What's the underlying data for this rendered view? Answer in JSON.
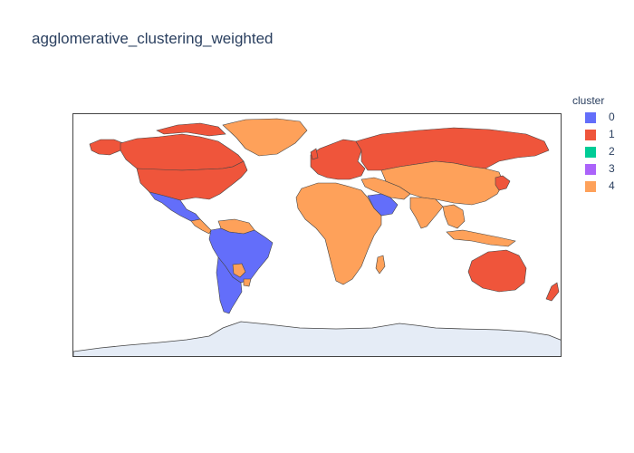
{
  "chart": {
    "title": "agglomerative_clustering_weighted"
  },
  "legend": {
    "title": "cluster",
    "items": [
      {
        "label": "0",
        "color": "#636efa"
      },
      {
        "label": "1",
        "color": "#ef553b"
      },
      {
        "label": "2",
        "color": "#00cc96"
      },
      {
        "label": "3",
        "color": "#ab63fa"
      },
      {
        "label": "4",
        "color": "#fea15a"
      }
    ]
  },
  "chart_data": {
    "type": "choropleth",
    "title": "agglomerative_clustering_weighted",
    "legend_title": "cluster",
    "legend_placement": "right",
    "categories": [
      "0",
      "1",
      "2",
      "3",
      "4"
    ],
    "category_colors": {
      "0": "#636efa",
      "1": "#ef553b",
      "2": "#00cc96",
      "3": "#ab63fa",
      "4": "#fea15a"
    },
    "regions": [
      {
        "name": "Canada",
        "cluster": "1"
      },
      {
        "name": "United States",
        "cluster": "1"
      },
      {
        "name": "Alaska",
        "cluster": "1"
      },
      {
        "name": "Greenland",
        "cluster": "4"
      },
      {
        "name": "Mexico",
        "cluster": "0"
      },
      {
        "name": "Central America",
        "cluster": "4"
      },
      {
        "name": "Colombia",
        "cluster": "0"
      },
      {
        "name": "Venezuela",
        "cluster": "4"
      },
      {
        "name": "Guyana / Suriname",
        "cluster": "4"
      },
      {
        "name": "Brazil",
        "cluster": "0"
      },
      {
        "name": "Peru",
        "cluster": "0"
      },
      {
        "name": "Bolivia",
        "cluster": "0"
      },
      {
        "name": "Paraguay",
        "cluster": "4"
      },
      {
        "name": "Uruguay",
        "cluster": "4"
      },
      {
        "name": "Argentina",
        "cluster": "0"
      },
      {
        "name": "Chile",
        "cluster": "0"
      },
      {
        "name": "Europe",
        "cluster": "1"
      },
      {
        "name": "Russia",
        "cluster": "1"
      },
      {
        "name": "Central Asia",
        "cluster": "4"
      },
      {
        "name": "Mongolia",
        "cluster": "4"
      },
      {
        "name": "China",
        "cluster": "4"
      },
      {
        "name": "Japan",
        "cluster": "1"
      },
      {
        "name": "Korea",
        "cluster": "1"
      },
      {
        "name": "Middle East",
        "cluster": "4"
      },
      {
        "name": "Saudi Arabia",
        "cluster": "0"
      },
      {
        "name": "South Asia",
        "cluster": "4"
      },
      {
        "name": "Southeast Asia",
        "cluster": "4"
      },
      {
        "name": "Africa",
        "cluster": "4"
      },
      {
        "name": "Madagascar",
        "cluster": "4"
      },
      {
        "name": "Australia",
        "cluster": "1"
      },
      {
        "name": "New Zealand",
        "cluster": "1"
      },
      {
        "name": "Antarctica",
        "cluster": null
      }
    ],
    "no_data_color": "#e5ecf6",
    "projection": "equirectangular"
  }
}
